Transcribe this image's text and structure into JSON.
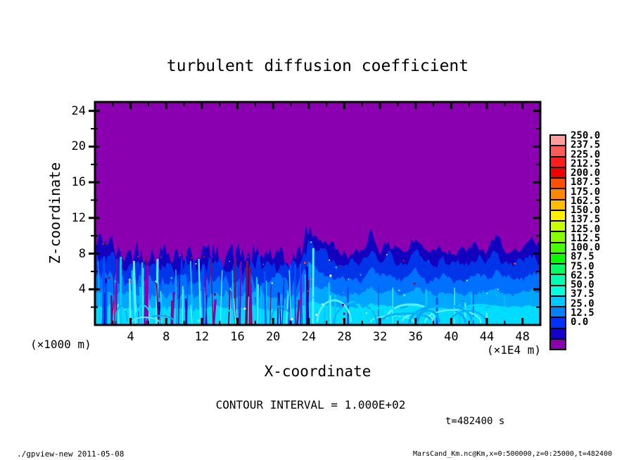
{
  "title": "turbulent diffusion coefficient",
  "plot": {
    "x_axis": {
      "label": "X-coordinate",
      "unit_note": "(×1E4 m)",
      "ticks": [
        4,
        8,
        12,
        16,
        20,
        24,
        28,
        32,
        36,
        40,
        44,
        48
      ],
      "range": [
        0,
        50
      ],
      "minor_step": 2
    },
    "y_axis": {
      "label": "Z-coordinate",
      "unit_note": "(×1000 m)",
      "ticks": [
        4,
        8,
        12,
        16,
        20,
        24
      ],
      "range": [
        0,
        25
      ],
      "minor_step": 2
    }
  },
  "colorbar": {
    "labels_top_to_bottom": [
      "250.0",
      "237.5",
      "225.0",
      "212.5",
      "200.0",
      "187.5",
      "175.0",
      "162.5",
      "150.0",
      "137.5",
      "125.0",
      "112.5",
      "100.0",
      "87.5",
      "75.0",
      "62.5",
      "50.0",
      "37.5",
      "25.0",
      "12.5",
      "0.0"
    ],
    "colors_top_to_bottom": [
      "#FF9C9C",
      "#FF5A5A",
      "#FF1E1E",
      "#F00000",
      "#FF5000",
      "#FF8700",
      "#FFBE00",
      "#FFF000",
      "#C8FF00",
      "#87FF00",
      "#46FF00",
      "#05FF00",
      "#00FF64",
      "#00FFB4",
      "#00FFDC",
      "#00C8FF",
      "#0082FF",
      "#0032FF",
      "#1400C8",
      "#8A00B0"
    ]
  },
  "annotations": {
    "contour_interval": "CONTOUR INTERVAL = 1.000E+02",
    "time": "t=482400 s"
  },
  "footer": {
    "left": "./gpview-new  2011-05-08",
    "right": "MarsCand_Km.nc@Km,x=0:500000,z=0:25000,t=482400"
  },
  "chart_data": {
    "type": "heatmap",
    "title": "turbulent diffusion coefficient",
    "xlabel": "X-coordinate (×1E4 m)",
    "ylabel": "Z-coordinate (×1000 m)",
    "xlim": [
      0,
      50
    ],
    "ylim": [
      0,
      25
    ],
    "time_s": 482400,
    "contour_interval": 100.0,
    "levels_min": 0.0,
    "levels_max": 250.0,
    "level_step": 12.5,
    "palette_low_to_high": [
      "#8A00B0",
      "#1400C8",
      "#0032FF",
      "#0082FF",
      "#00C8FF",
      "#00FFDC",
      "#00FFB4",
      "#00FF64",
      "#05FF00",
      "#46FF00",
      "#87FF00",
      "#C8FF00",
      "#FFF000",
      "#FFBE00",
      "#FF8700",
      "#FF5000",
      "#F00000",
      "#FF1E1E",
      "#FF5A5A",
      "#FF9C9C"
    ],
    "background_field_color": "#8A00B0",
    "field_summary": "Quiescent (value ~0, purple) above z≈8; turbulent layer (values ~12.5–100, blues/cyans) from surface to mixed-layer top, ragged fine-scale plumes for x<24, smoother broad swirls for x>24",
    "mixed_layer_top_x": [
      0,
      1,
      2,
      3,
      4,
      5,
      6,
      7,
      8,
      9,
      10,
      11,
      12,
      13,
      14,
      15,
      16,
      17,
      18,
      19,
      20,
      21,
      22,
      23,
      24,
      25,
      26,
      27,
      28,
      29,
      30,
      31,
      32,
      33,
      34,
      35,
      36,
      37,
      38,
      39,
      40,
      41,
      42,
      43,
      44,
      45,
      46,
      47,
      48,
      49,
      50
    ],
    "mixed_layer_top_z": [
      8.6,
      9.6,
      8.9,
      7.9,
      8.1,
      8.0,
      8.2,
      7.9,
      8.1,
      8.0,
      8.3,
      7.8,
      8.0,
      8.2,
      7.9,
      8.1,
      7.8,
      8.0,
      7.9,
      7.7,
      7.8,
      7.6,
      7.2,
      7.8,
      11.0,
      9.9,
      9.4,
      8.3,
      8.0,
      8.2,
      8.1,
      10.3,
      8.7,
      9.2,
      8.4,
      8.1,
      10.1,
      8.5,
      8.1,
      8.9,
      8.3,
      8.0,
      8.4,
      9.1,
      8.3,
      9.7,
      8.5,
      8.2,
      8.4,
      9.4,
      8.6
    ],
    "layer_colors": [
      "#1202C0",
      "#0034E8",
      "#0070FF",
      "#00A6FF",
      "#00DCFF"
    ],
    "detail_colors": {
      "streaks": [
        "#00C8FF",
        "#0050FF",
        "#0A00BE",
        "#8A00B0",
        "#7A1060",
        "#55EFFF"
      ],
      "swirls": [
        "#00E0FF",
        "#55EFFF",
        "#00AAFF"
      ],
      "specks": [
        "#FF4040",
        "#FFFFFF",
        "#55EFFF",
        "#00C8FF",
        "#7A1060"
      ]
    }
  }
}
